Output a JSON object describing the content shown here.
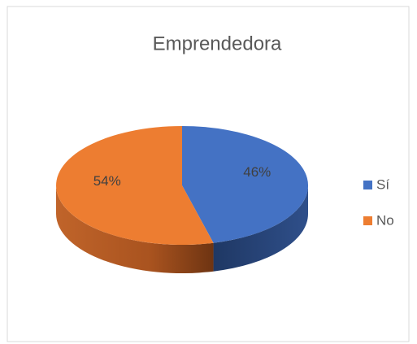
{
  "chart_data": {
    "type": "pie3d",
    "title": "Emprendedora",
    "categories": [
      "Sí",
      "No"
    ],
    "values": [
      46,
      54
    ],
    "value_labels": [
      "46%",
      "54%"
    ],
    "colors": [
      "#4472c4",
      "#ed7d31"
    ],
    "legend": "right"
  }
}
